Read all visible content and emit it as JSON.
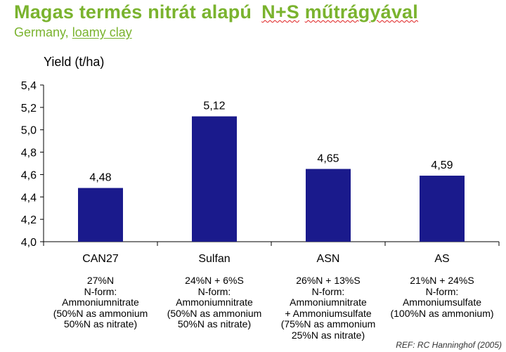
{
  "header": {
    "title_part1": "Magas termés nitrát alapú",
    "title_part2": "N+S",
    "title_part3": "műtrágyával",
    "subtitle_country": "Germany,",
    "subtitle_soil": "loamy clay"
  },
  "colors": {
    "title": "#7ab32e",
    "bar": "#1a1a8c",
    "axis": "#000000"
  },
  "chart_data": {
    "type": "bar",
    "ylabel": "Yield (t/ha)",
    "categories": [
      "CAN27",
      "Sulfan",
      "ASN",
      "AS"
    ],
    "values": [
      4.48,
      5.12,
      4.65,
      4.59
    ],
    "value_labels": [
      "4,48",
      "5,12",
      "4,65",
      "4,59"
    ],
    "ylim": [
      4.0,
      5.4
    ],
    "yticks": [
      4.0,
      4.2,
      4.4,
      4.6,
      4.8,
      5.0,
      5.2,
      5.4
    ],
    "ytick_labels": [
      "4,0",
      "4,2",
      "4,4",
      "4,6",
      "4,8",
      "5,0",
      "5,2",
      "5,4"
    ],
    "grid": false,
    "legend": "none"
  },
  "descriptions": [
    [
      "27%N",
      "N-form:",
      "Ammoniumnitrate",
      "(50%N  as ammonium",
      "50%N  as nitrate)"
    ],
    [
      "24%N  + 6%S",
      "N-form:",
      "Ammoniumnitrate",
      "(50%N  as ammonium",
      "50%N  as nitrate)"
    ],
    [
      "26%N  + 13%S",
      "N-form:",
      "Ammoniumnitrate",
      "+ Ammoniumsulfate",
      "(75%N  as ammonium",
      "25%N  as nitrate)"
    ],
    [
      "21%N  + 24%S",
      "N-form:",
      "Ammoniumsulfate",
      "(100%N  as ammonium)"
    ]
  ],
  "footer": {
    "reference": "REF: RC Hanninghof (2005)"
  }
}
